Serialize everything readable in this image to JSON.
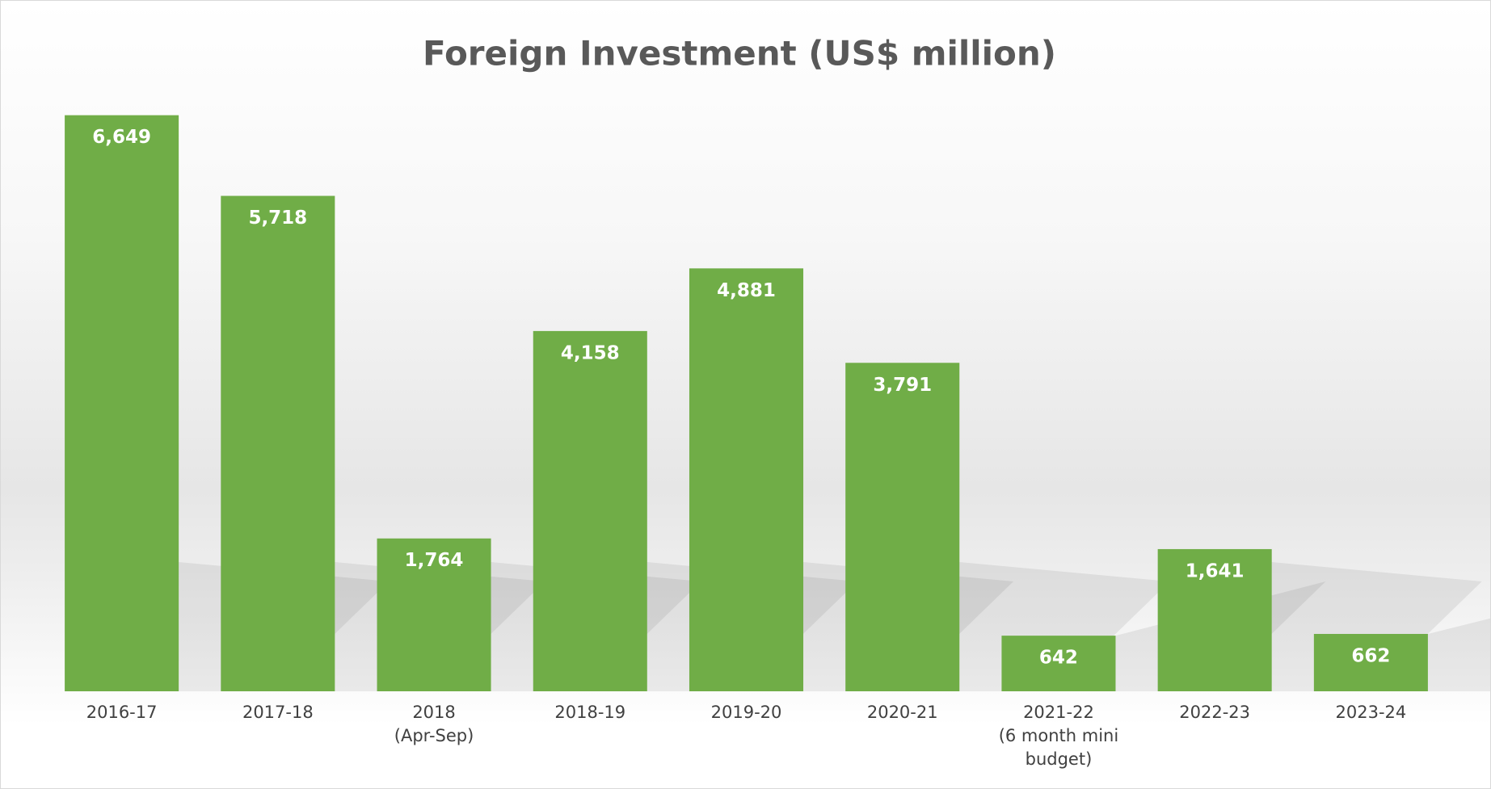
{
  "chart_data": {
    "type": "bar",
    "title": "Foreign Investment (US$ million)",
    "categories": [
      "2016-17",
      "2017-18",
      "2018\n(Apr-Sep)",
      "2018-19",
      "2019-20",
      "2020-21",
      "2021-22\n(6 month mini\nbudget)",
      "2022-23",
      "2023-24"
    ],
    "values": [
      6649,
      5718,
      1764,
      4158,
      4881,
      3791,
      642,
      1641,
      662
    ],
    "value_labels": [
      "6,649",
      "5,718",
      "1,764",
      "4,158",
      "4,881",
      "3,791",
      "642",
      "1,641",
      "662"
    ],
    "color": "#70ad47",
    "ylim": [
      0,
      7000
    ]
  }
}
